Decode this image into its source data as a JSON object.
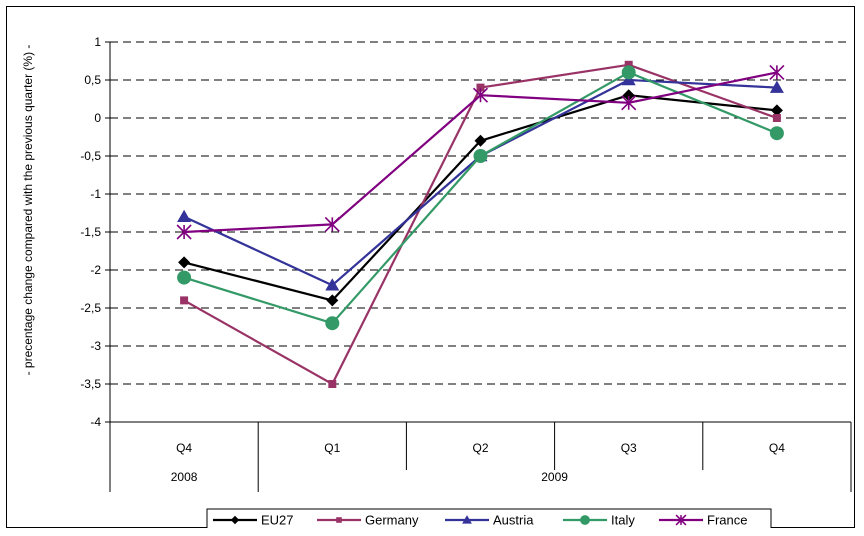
{
  "chart_data": {
    "type": "line",
    "title": "",
    "ylabel": "- precentage change compared with  the previous quarter (%) -",
    "xlabel": "",
    "ylim": [
      -4,
      1
    ],
    "yticks": [
      1,
      0.5,
      0,
      -0.5,
      -1,
      -1.5,
      -2,
      -2.5,
      -3,
      -3.5,
      -4
    ],
    "ytick_labels": [
      "1",
      "0,5",
      "0",
      "-0,5",
      "-1",
      "-1,5",
      "-2",
      "-2,5",
      "-3",
      "-3,5",
      "-4"
    ],
    "categories": [
      "Q4",
      "Q1",
      "Q2",
      "Q3",
      "Q4"
    ],
    "years": [
      {
        "label": "2008",
        "span": 1
      },
      {
        "label": "2009",
        "span": 4
      }
    ],
    "grid": "horizontal-dashed",
    "legend_position": "bottom",
    "series": [
      {
        "name": "EU27",
        "color": "#000000",
        "marker": "diamond",
        "values": [
          -1.9,
          -2.4,
          -0.3,
          0.3,
          0.1
        ]
      },
      {
        "name": "Germany",
        "color": "#993366",
        "marker": "square",
        "values": [
          -2.4,
          -3.5,
          0.4,
          0.7,
          0.0
        ]
      },
      {
        "name": "Austria",
        "color": "#333399",
        "marker": "triangle",
        "values": [
          -1.3,
          -2.2,
          -0.5,
          0.5,
          0.4
        ]
      },
      {
        "name": "Italy",
        "color": "#339966",
        "marker": "circle",
        "values": [
          -2.1,
          -2.7,
          -0.5,
          0.6,
          -0.2
        ]
      },
      {
        "name": "France",
        "color": "#800080",
        "marker": "star",
        "values": [
          -1.5,
          -1.4,
          0.3,
          0.2,
          0.6
        ]
      }
    ]
  }
}
